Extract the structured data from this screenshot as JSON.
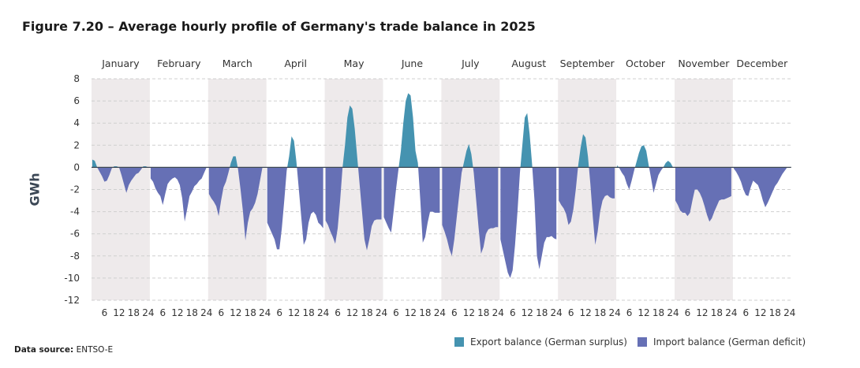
{
  "title": "Figure 7.20 – Average hourly profile of Germany's trade balance in 2025",
  "source_label": "Data source:",
  "source_value": "ENTSO-E",
  "legend": [
    {
      "label": "Export balance (German surplus)",
      "color": "#4593b0"
    },
    {
      "label": "Import balance (German deficit)",
      "color": "#6670b5"
    }
  ],
  "chart_data": {
    "type": "area",
    "title": "Figure 7.20 – Average hourly profile of Germany's trade balance in 2025",
    "ylabel": "GWh",
    "xlabel": "",
    "ylim": [
      -12,
      8
    ],
    "yticks": [
      8,
      6,
      4,
      2,
      0,
      -2,
      -4,
      -6,
      -8,
      -10,
      -12
    ],
    "hour_ticks": [
      6,
      12,
      18,
      24
    ],
    "grid": true,
    "legend_position": "bottom-right",
    "shaded_months": [
      "January",
      "March",
      "May",
      "July",
      "September",
      "November"
    ],
    "shade_color": "#eeeaeb",
    "hours": [
      1,
      2,
      3,
      4,
      5,
      6,
      7,
      8,
      9,
      10,
      11,
      12,
      13,
      14,
      15,
      16,
      17,
      18,
      19,
      20,
      21,
      22,
      23,
      24
    ],
    "months": [
      {
        "name": "January",
        "values": [
          0.7,
          0.6,
          0,
          -0.4,
          -0.8,
          -1.3,
          -1.2,
          -0.7,
          -0.1,
          0.1,
          0.1,
          0,
          -0.7,
          -1.5,
          -2.3,
          -1.6,
          -1.2,
          -0.9,
          -0.6,
          -0.5,
          -0.2,
          0.1,
          0.1,
          0.0
        ]
      },
      {
        "name": "February",
        "values": [
          -1.0,
          -1.3,
          -1.9,
          -2.3,
          -2.6,
          -3.4,
          -2.4,
          -1.5,
          -1.2,
          -1.0,
          -0.9,
          -1.1,
          -1.6,
          -2.8,
          -4.9,
          -3.8,
          -2.6,
          -2.2,
          -1.7,
          -1.5,
          -1.2,
          -1.0,
          -0.5,
          0
        ]
      },
      {
        "name": "March",
        "values": [
          -2.4,
          -2.8,
          -3.1,
          -3.5,
          -4.4,
          -3.0,
          -1.8,
          -1.3,
          -0.5,
          0.4,
          1.0,
          1.0,
          -0.2,
          -2.0,
          -4.0,
          -6.6,
          -5.0,
          -4.0,
          -3.7,
          -3.2,
          -2.4,
          -1.2,
          0,
          0
        ]
      },
      {
        "name": "April",
        "values": [
          -5.0,
          -5.5,
          -6.0,
          -6.5,
          -7.4,
          -7.4,
          -5.5,
          -3.0,
          -0.3,
          1.0,
          2.8,
          2.4,
          0.5,
          -2.0,
          -4.5,
          -7.0,
          -6.5,
          -5.0,
          -4.2,
          -4.0,
          -4.3,
          -5.0,
          -5.2,
          -5.5
        ]
      },
      {
        "name": "May",
        "values": [
          -4.8,
          -5.2,
          -5.8,
          -6.3,
          -6.9,
          -5.5,
          -3,
          0,
          2,
          4.5,
          5.6,
          5.3,
          3.5,
          1,
          -1.5,
          -4,
          -6.5,
          -7.5,
          -6.5,
          -5.3,
          -4.8,
          -4.7,
          -4.7,
          -4.7
        ]
      },
      {
        "name": "June",
        "values": [
          -4.5,
          -5,
          -5.5,
          -5.9,
          -4,
          -2,
          -0.2,
          1.5,
          4,
          6,
          6.7,
          6.5,
          4.5,
          1.5,
          0.4,
          -3,
          -6.8,
          -6.3,
          -5,
          -4,
          -4,
          -4.1,
          -4.1,
          -4.1
        ]
      },
      {
        "name": "July",
        "values": [
          -5.2,
          -5.8,
          -6.5,
          -7.4,
          -8.0,
          -6.5,
          -4.5,
          -2.5,
          -0.5,
          0.5,
          1.5,
          2.1,
          1.2,
          -0.5,
          -3,
          -5.5,
          -7.8,
          -7.2,
          -6,
          -5.6,
          -5.5,
          -5.5,
          -5.4,
          -5.4
        ]
      },
      {
        "name": "August",
        "values": [
          -6.5,
          -7.5,
          -8.5,
          -9.5,
          -10,
          -9.3,
          -7,
          -4,
          -0.5,
          2,
          4.5,
          4.9,
          3,
          0.3,
          -3,
          -8,
          -9.2,
          -8,
          -6.8,
          -6.3,
          -6.3,
          -6.2,
          -6.4,
          -6.5
        ]
      },
      {
        "name": "September",
        "values": [
          -3.0,
          -3.4,
          -3.7,
          -4.2,
          -5.2,
          -4.9,
          -3.8,
          -2,
          0.2,
          1.8,
          3,
          2.7,
          1,
          -1.5,
          -4.5,
          -7,
          -5.8,
          -4,
          -3,
          -2.6,
          -2.5,
          -2.7,
          -2.8,
          -2.8
        ]
      },
      {
        "name": "October",
        "values": [
          0.2,
          -0.1,
          -0.5,
          -0.8,
          -1.5,
          -2,
          -1.2,
          -0.3,
          0.5,
          1.3,
          1.9,
          2,
          1.5,
          0.2,
          -1,
          -2.3,
          -1.5,
          -0.7,
          -0.3,
          0,
          0.4,
          0.6,
          0.4,
          0
        ]
      },
      {
        "name": "November",
        "values": [
          -3,
          -3.4,
          -3.9,
          -4.1,
          -4.1,
          -4.4,
          -4.1,
          -3,
          -2,
          -2,
          -2.3,
          -2.8,
          -3.5,
          -4.3,
          -4.9,
          -4.6,
          -4,
          -3.5,
          -3,
          -2.9,
          -2.9,
          -2.8,
          -2.7,
          -2.6
        ]
      },
      {
        "name": "December",
        "values": [
          -0.1,
          -0.4,
          -0.8,
          -1.3,
          -2,
          -2.5,
          -2.6,
          -1.8,
          -1.2,
          -1.4,
          -1.6,
          -2.2,
          -3,
          -3.6,
          -3.2,
          -2.7,
          -2.2,
          -1.7,
          -1.4,
          -1,
          -0.6,
          -0.3,
          0,
          0
        ]
      }
    ]
  }
}
